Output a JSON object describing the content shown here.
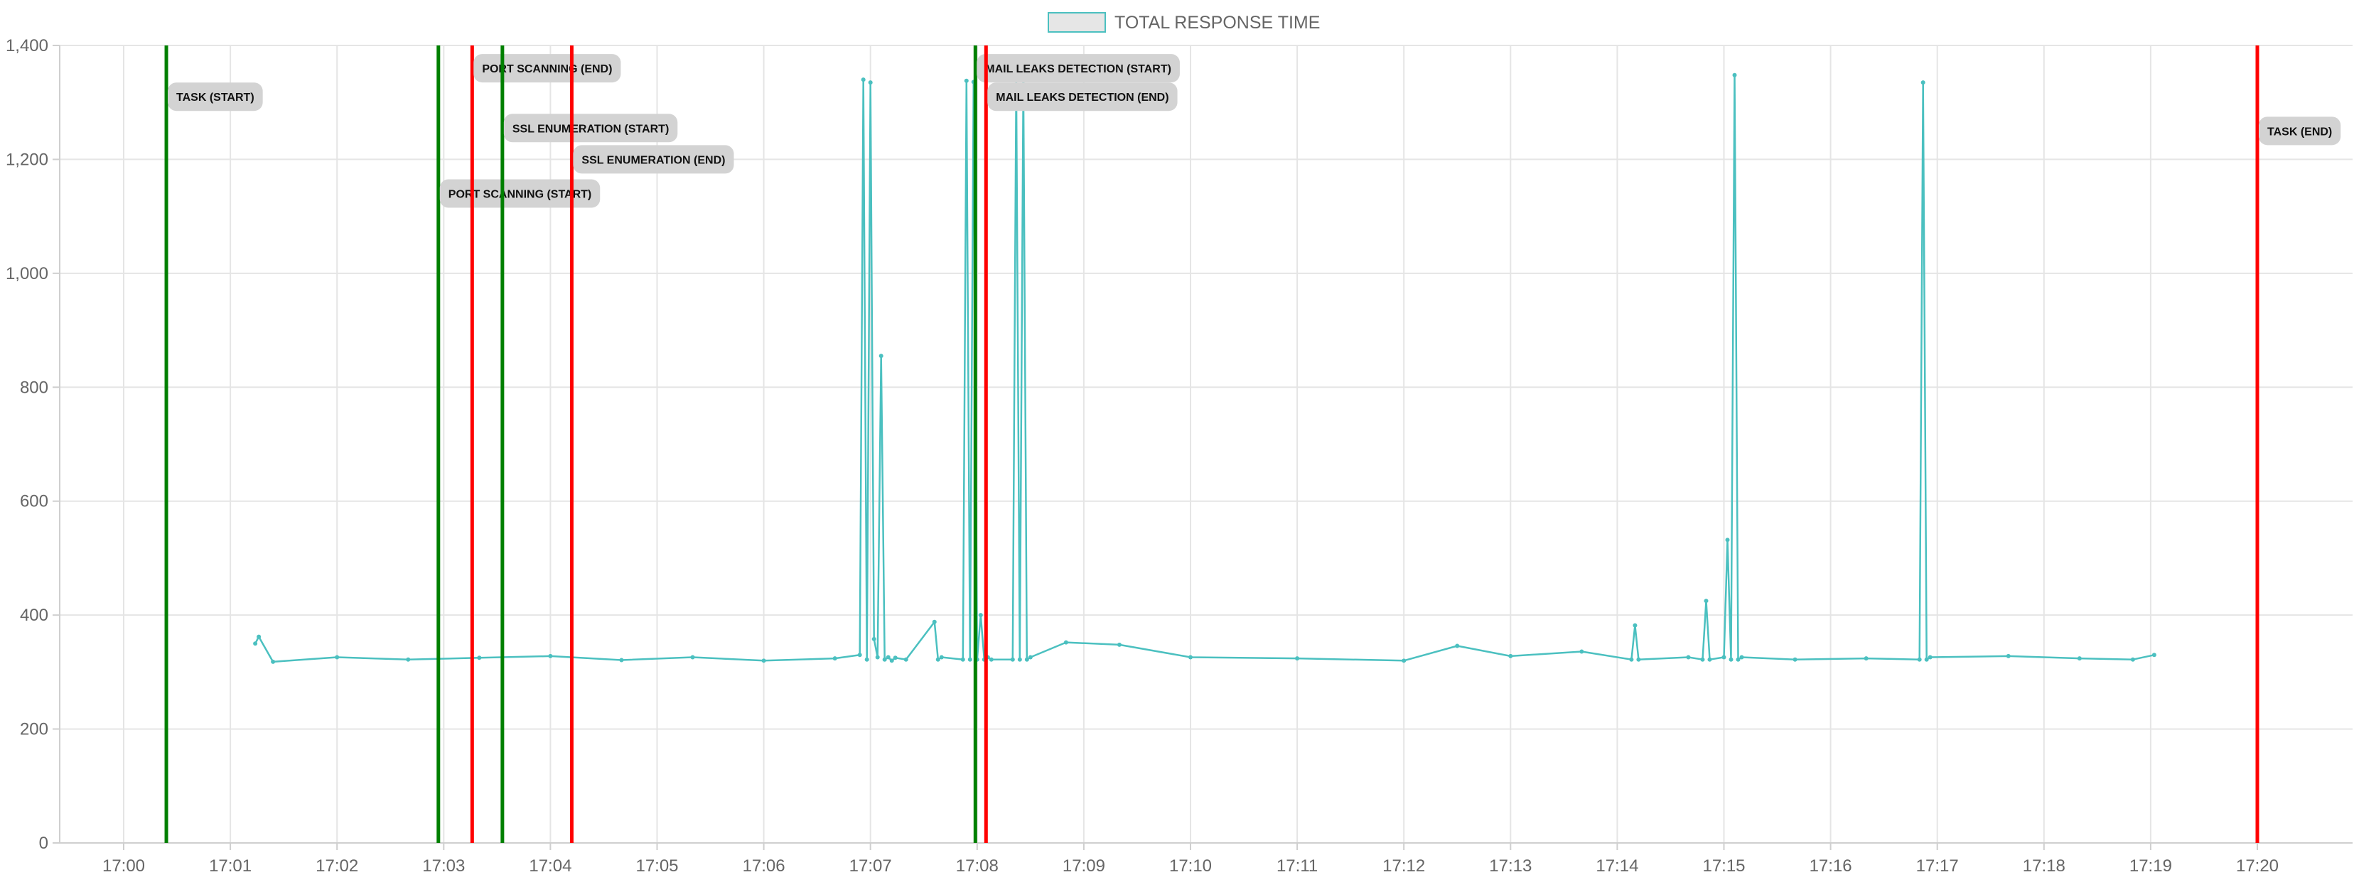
{
  "chart_data": {
    "type": "line",
    "title": "",
    "xlabel": "",
    "ylabel": "",
    "xlim": [
      "17:00",
      "17:20"
    ],
    "ylim": [
      0,
      1400
    ],
    "x_tick_labels": [
      "17:00",
      "17:01",
      "17:02",
      "17:03",
      "17:04",
      "17:05",
      "17:06",
      "17:07",
      "17:08",
      "17:09",
      "17:10",
      "17:11",
      "17:12",
      "17:13",
      "17:14",
      "17:15",
      "17:16",
      "17:17",
      "17:18",
      "17:19",
      "17:20"
    ],
    "y_tick_labels": [
      "0",
      "200",
      "400",
      "600",
      "800",
      "1,000",
      "1,200",
      "1,400"
    ],
    "y_tick_values": [
      0,
      200,
      400,
      600,
      800,
      1000,
      1200,
      1400
    ],
    "grid": true,
    "legend_position": "top-center",
    "series": [
      {
        "name": "TOTAL RESPONSE TIME",
        "color": "#4bc0c0",
        "fill": "#e6e6e6",
        "x": [
          "17:01:14",
          "17:01:16",
          "17:01:24",
          "17:02:00",
          "17:02:40",
          "17:03:20",
          "17:04:00",
          "17:04:40",
          "17:05:20",
          "17:06:00",
          "17:06:40",
          "17:06:54",
          "17:06:56",
          "17:06:58",
          "17:07:00",
          "17:07:02",
          "17:07:04",
          "17:07:06",
          "17:07:08",
          "17:07:10",
          "17:07:12",
          "17:07:14",
          "17:07:20",
          "17:07:36",
          "17:07:38",
          "17:07:40",
          "17:07:52",
          "17:07:54",
          "17:07:56",
          "17:07:58",
          "17:08:00",
          "17:08:02",
          "17:08:04",
          "17:08:06",
          "17:08:08",
          "17:08:20",
          "17:08:22",
          "17:08:24",
          "17:08:26",
          "17:08:28",
          "17:08:30",
          "17:08:50",
          "17:09:20",
          "17:10:00",
          "17:11:00",
          "17:12:00",
          "17:12:30",
          "17:13:00",
          "17:13:40",
          "17:14:08",
          "17:14:10",
          "17:14:12",
          "17:14:40",
          "17:14:48",
          "17:14:50",
          "17:14:52",
          "17:15:00",
          "17:15:02",
          "17:15:04",
          "17:15:06",
          "17:15:08",
          "17:15:10",
          "17:15:40",
          "17:16:20",
          "17:16:50",
          "17:16:52",
          "17:16:54",
          "17:16:56",
          "17:17:40",
          "17:18:20",
          "17:18:50",
          "17:19:02"
        ],
        "values": [
          350,
          362,
          318,
          326,
          322,
          325,
          328,
          321,
          326,
          320,
          324,
          330,
          1340,
          322,
          1335,
          358,
          326,
          855,
          322,
          326,
          320,
          325,
          322,
          388,
          322,
          326,
          322,
          1338,
          322,
          1336,
          322,
          400,
          322,
          326,
          322,
          322,
          1340,
          322,
          1338,
          322,
          326,
          352,
          348,
          326,
          324,
          320,
          346,
          328,
          336,
          322,
          382,
          322,
          326,
          322,
          425,
          322,
          326,
          532,
          322,
          1348,
          322,
          326,
          322,
          324,
          322,
          1335,
          322,
          326,
          328,
          324,
          322,
          330
        ]
      }
    ],
    "annotations": [
      {
        "label": "TASK (START)",
        "x": "17:00:24",
        "color": "#008000",
        "value": 1310
      },
      {
        "label": "PORT SCANNING (START)",
        "x": "17:02:57",
        "color": "#008000",
        "value": 1140
      },
      {
        "label": "PORT SCANNING (END)",
        "x": "17:03:16",
        "color": "#ff0000",
        "value": 1360
      },
      {
        "label": "SSL ENUMERATION (START)",
        "x": "17:03:33",
        "color": "#008000",
        "value": 1255
      },
      {
        "label": "SSL ENUMERATION (END)",
        "x": "17:04:12",
        "color": "#ff0000",
        "value": 1200
      },
      {
        "label": "MAIL LEAKS DETECTION (START)",
        "x": "17:07:59",
        "color": "#008000",
        "value": 1360
      },
      {
        "label": "MAIL LEAKS DETECTION (END)",
        "x": "17:08:05",
        "color": "#ff0000",
        "value": 1310
      },
      {
        "label": "TASK (END)",
        "x": "17:20:00",
        "color": "#ff0000",
        "value": 1250
      }
    ]
  }
}
